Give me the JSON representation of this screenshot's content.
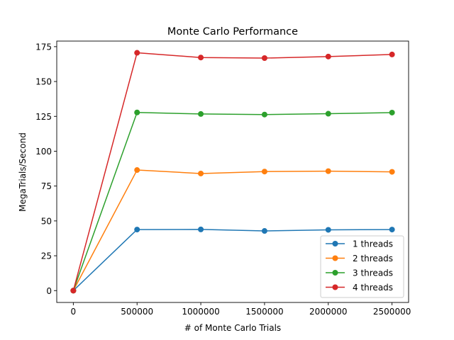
{
  "chart_data": {
    "type": "line",
    "title": "Monte Carlo Performance",
    "xlabel": "# of Monte Carlo Trials",
    "ylabel": "MegaTrials/Second",
    "x": [
      0,
      500000,
      1000000,
      1500000,
      2000000,
      2500000
    ],
    "x_tick_labels": [
      "0",
      "500000",
      "1000000",
      "1500000",
      "2000000",
      "2500000"
    ],
    "y_ticks": [
      0,
      25,
      50,
      75,
      100,
      125,
      150,
      175
    ],
    "y_tick_labels": [
      "0",
      "25",
      "50",
      "75",
      "100",
      "125",
      "150",
      "175"
    ],
    "xlim": [
      -130000,
      2630000
    ],
    "ylim": [
      -8.5,
      179
    ],
    "grid": false,
    "legend_position": "lower-right",
    "marker": "circle",
    "series": [
      {
        "name": "1 threads",
        "color": "#1f77b4",
        "values": [
          0,
          43.8,
          43.9,
          42.8,
          43.6,
          43.8
        ]
      },
      {
        "name": "2 threads",
        "color": "#ff7f0e",
        "values": [
          0,
          86.5,
          84.0,
          85.4,
          85.7,
          85.2
        ]
      },
      {
        "name": "3 threads",
        "color": "#2ca02c",
        "values": [
          0,
          127.8,
          126.7,
          126.3,
          126.9,
          127.7
        ]
      },
      {
        "name": "4 threads",
        "color": "#d62728",
        "values": [
          0,
          170.6,
          167.2,
          166.8,
          167.9,
          169.4
        ]
      }
    ]
  }
}
